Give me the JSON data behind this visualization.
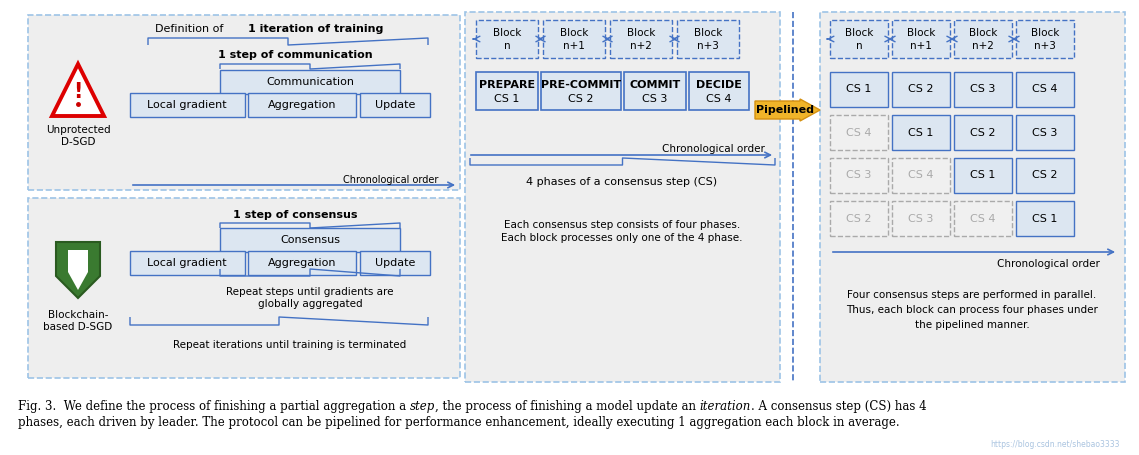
{
  "bg_color": "#ffffff",
  "panel_bg": "#eeeeee",
  "box_fill": "#dce6f1",
  "border_blue": "#4472c4",
  "border_light_blue": "#9dc3e6",
  "text_dark": "#000000",
  "text_gray": "#888888",
  "arrow_blue": "#4472c4",
  "arrow_yellow": "#e8a020",
  "gray_fill": "#e0e0e0",
  "gray_ec": "#aaaaaa",
  "watermark_color": "#aac4e0",
  "caption_line1": "Fig. 3.  We define the process of finishing a partial aggregation a ",
  "caption_italic1": "step",
  "caption_mid1": ", the process of finishing a model update an ",
  "caption_italic2": "iteration",
  "caption_end1": ". A consensus step (CS) has 4",
  "caption_line2": "phases, each driven by leader. The protocol can be pipelined for performance enhancement, ideally executing 1 aggregation each block in average.",
  "watermark": "https://blog.csdn.net/shebao3333"
}
